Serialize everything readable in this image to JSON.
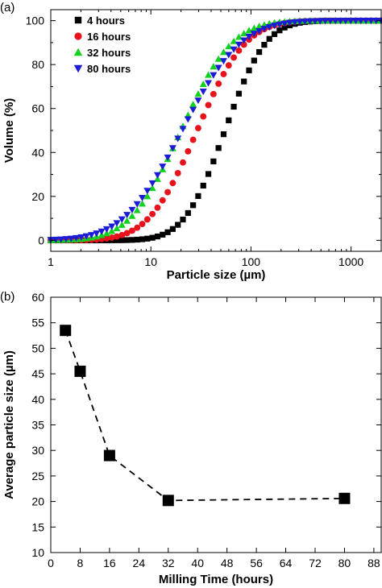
{
  "chart_data": [
    {
      "panel_label": "(a)",
      "type": "scatter",
      "xlabel": "Particle size (µm)",
      "ylabel": "Volume (%)",
      "x_scale": "log",
      "xlim": [
        1,
        2000
      ],
      "ylim": [
        -5,
        105
      ],
      "x_ticks": [
        1,
        10,
        100,
        1000
      ],
      "x_tick_labels": [
        "1",
        "10",
        "100",
        "1000"
      ],
      "y_ticks": [
        0,
        20,
        40,
        60,
        80,
        100
      ],
      "y_tick_labels": [
        "0",
        "20",
        "40",
        "60",
        "80",
        "100"
      ],
      "grid": false,
      "legend_position": "top-left",
      "series": [
        {
          "name": "4 hours",
          "color": "#000000",
          "marker": "square",
          "d50": 55,
          "spread": 0.32
        },
        {
          "name": "16 hours",
          "color": "#e8121c",
          "marker": "circle",
          "d50": 29,
          "spread": 0.38
        },
        {
          "name": "32 hours",
          "color": "#12d21f",
          "marker": "triangle-up",
          "d50": 20,
          "spread": 0.4
        },
        {
          "name": "80 hours",
          "color": "#1c1cd6",
          "marker": "triangle-down",
          "d50": 20.5,
          "spread": 0.46
        }
      ]
    },
    {
      "panel_label": "(b)",
      "type": "line",
      "xlabel": "Milling Time (hours)",
      "ylabel": "Average particle size (µm)",
      "xlim": [
        0,
        90
      ],
      "ylim": [
        10,
        60
      ],
      "x_ticks": [
        0,
        8,
        16,
        24,
        32,
        40,
        48,
        56,
        64,
        72,
        80,
        88
      ],
      "y_ticks": [
        10,
        15,
        20,
        25,
        30,
        35,
        40,
        45,
        50,
        55,
        60
      ],
      "grid": false,
      "line_style": "dashed",
      "marker": "square",
      "x": [
        4,
        8,
        16,
        32,
        80
      ],
      "y": [
        53.5,
        45.5,
        29.0,
        20.2,
        20.6
      ]
    }
  ]
}
